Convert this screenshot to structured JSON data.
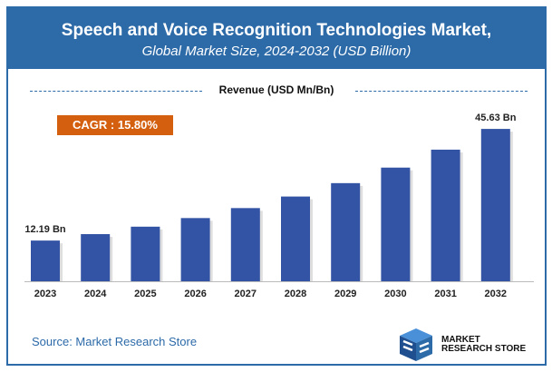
{
  "header": {
    "title": "Speech and Voice Recognition Technologies Market,",
    "subtitle": "Global Market Size, 2024-2032 (USD Billion)"
  },
  "legend_label": "Revenue (USD Mn/Bn)",
  "cagr": "CAGR : 15.80%",
  "source": "Source: Market Research Store",
  "logo": {
    "line1": "MARKET",
    "line2": "RESEARCH STORE"
  },
  "colors": {
    "bar": "#3353a4",
    "header": "#2c6aa8",
    "cagr": "#d35f0f"
  },
  "chart_data": {
    "type": "bar",
    "categories": [
      "2023",
      "2024",
      "2025",
      "2026",
      "2027",
      "2028",
      "2029",
      "2030",
      "2031",
      "2032"
    ],
    "values": [
      12.19,
      14.12,
      16.35,
      18.93,
      21.92,
      25.38,
      29.39,
      34.04,
      39.42,
      45.63
    ],
    "data_labels": [
      {
        "index": 0,
        "text": "12.19 Bn"
      },
      {
        "index": 9,
        "text": "45.63 Bn"
      }
    ],
    "ylim": [
      0,
      50
    ],
    "grid": false,
    "unit": "USD Billion"
  }
}
